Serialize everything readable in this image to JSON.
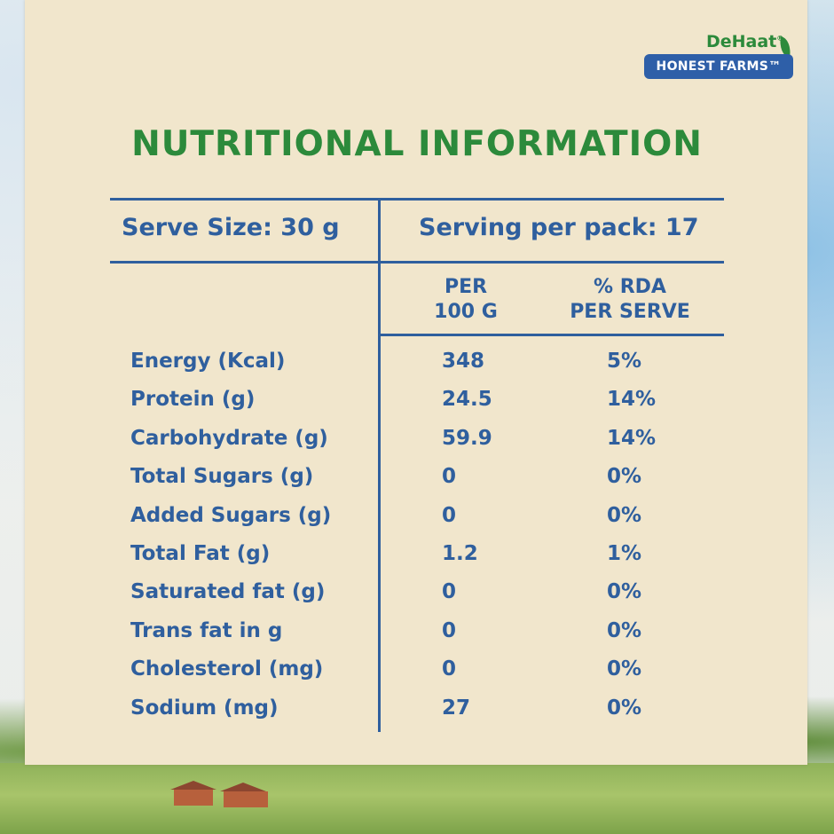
{
  "brand": {
    "name": "DeHaat",
    "registered": "®",
    "line": "HONEST FARMS™"
  },
  "title": "NUTRITIONAL INFORMATION",
  "header": {
    "serve_size": "Serve Size: 30 g",
    "servings": "Serving per pack: 17"
  },
  "columns": {
    "per100": [
      "PER",
      "100 G"
    ],
    "rda": [
      "% RDA",
      "PER SERVE"
    ]
  },
  "rows": [
    {
      "name": "Energy (Kcal)",
      "per100": "348",
      "rda": "5%"
    },
    {
      "name": "Protein (g)",
      "per100": "24.5",
      "rda": "14%"
    },
    {
      "name": "Carbohydrate (g)",
      "per100": "59.9",
      "rda": "14%"
    },
    {
      "name": "Total Sugars (g)",
      "per100": "0",
      "rda": "0%"
    },
    {
      "name": "Added Sugars (g)",
      "per100": "0",
      "rda": "0%"
    },
    {
      "name": "Total Fat (g)",
      "per100": "1.2",
      "rda": "1%"
    },
    {
      "name": "Saturated fat (g)",
      "per100": "0",
      "rda": "0%"
    },
    {
      "name": "Trans fat in g",
      "per100": "0",
      "rda": "0%"
    },
    {
      "name": "Cholesterol (mg)",
      "per100": "0",
      "rda": "0%"
    },
    {
      "name": "Sodium (mg)",
      "per100": "27",
      "rda": "0%"
    }
  ],
  "colors": {
    "title_green": "#2c8a3b",
    "table_blue": "#2f5f9e",
    "paper": "#f1e6cc"
  }
}
